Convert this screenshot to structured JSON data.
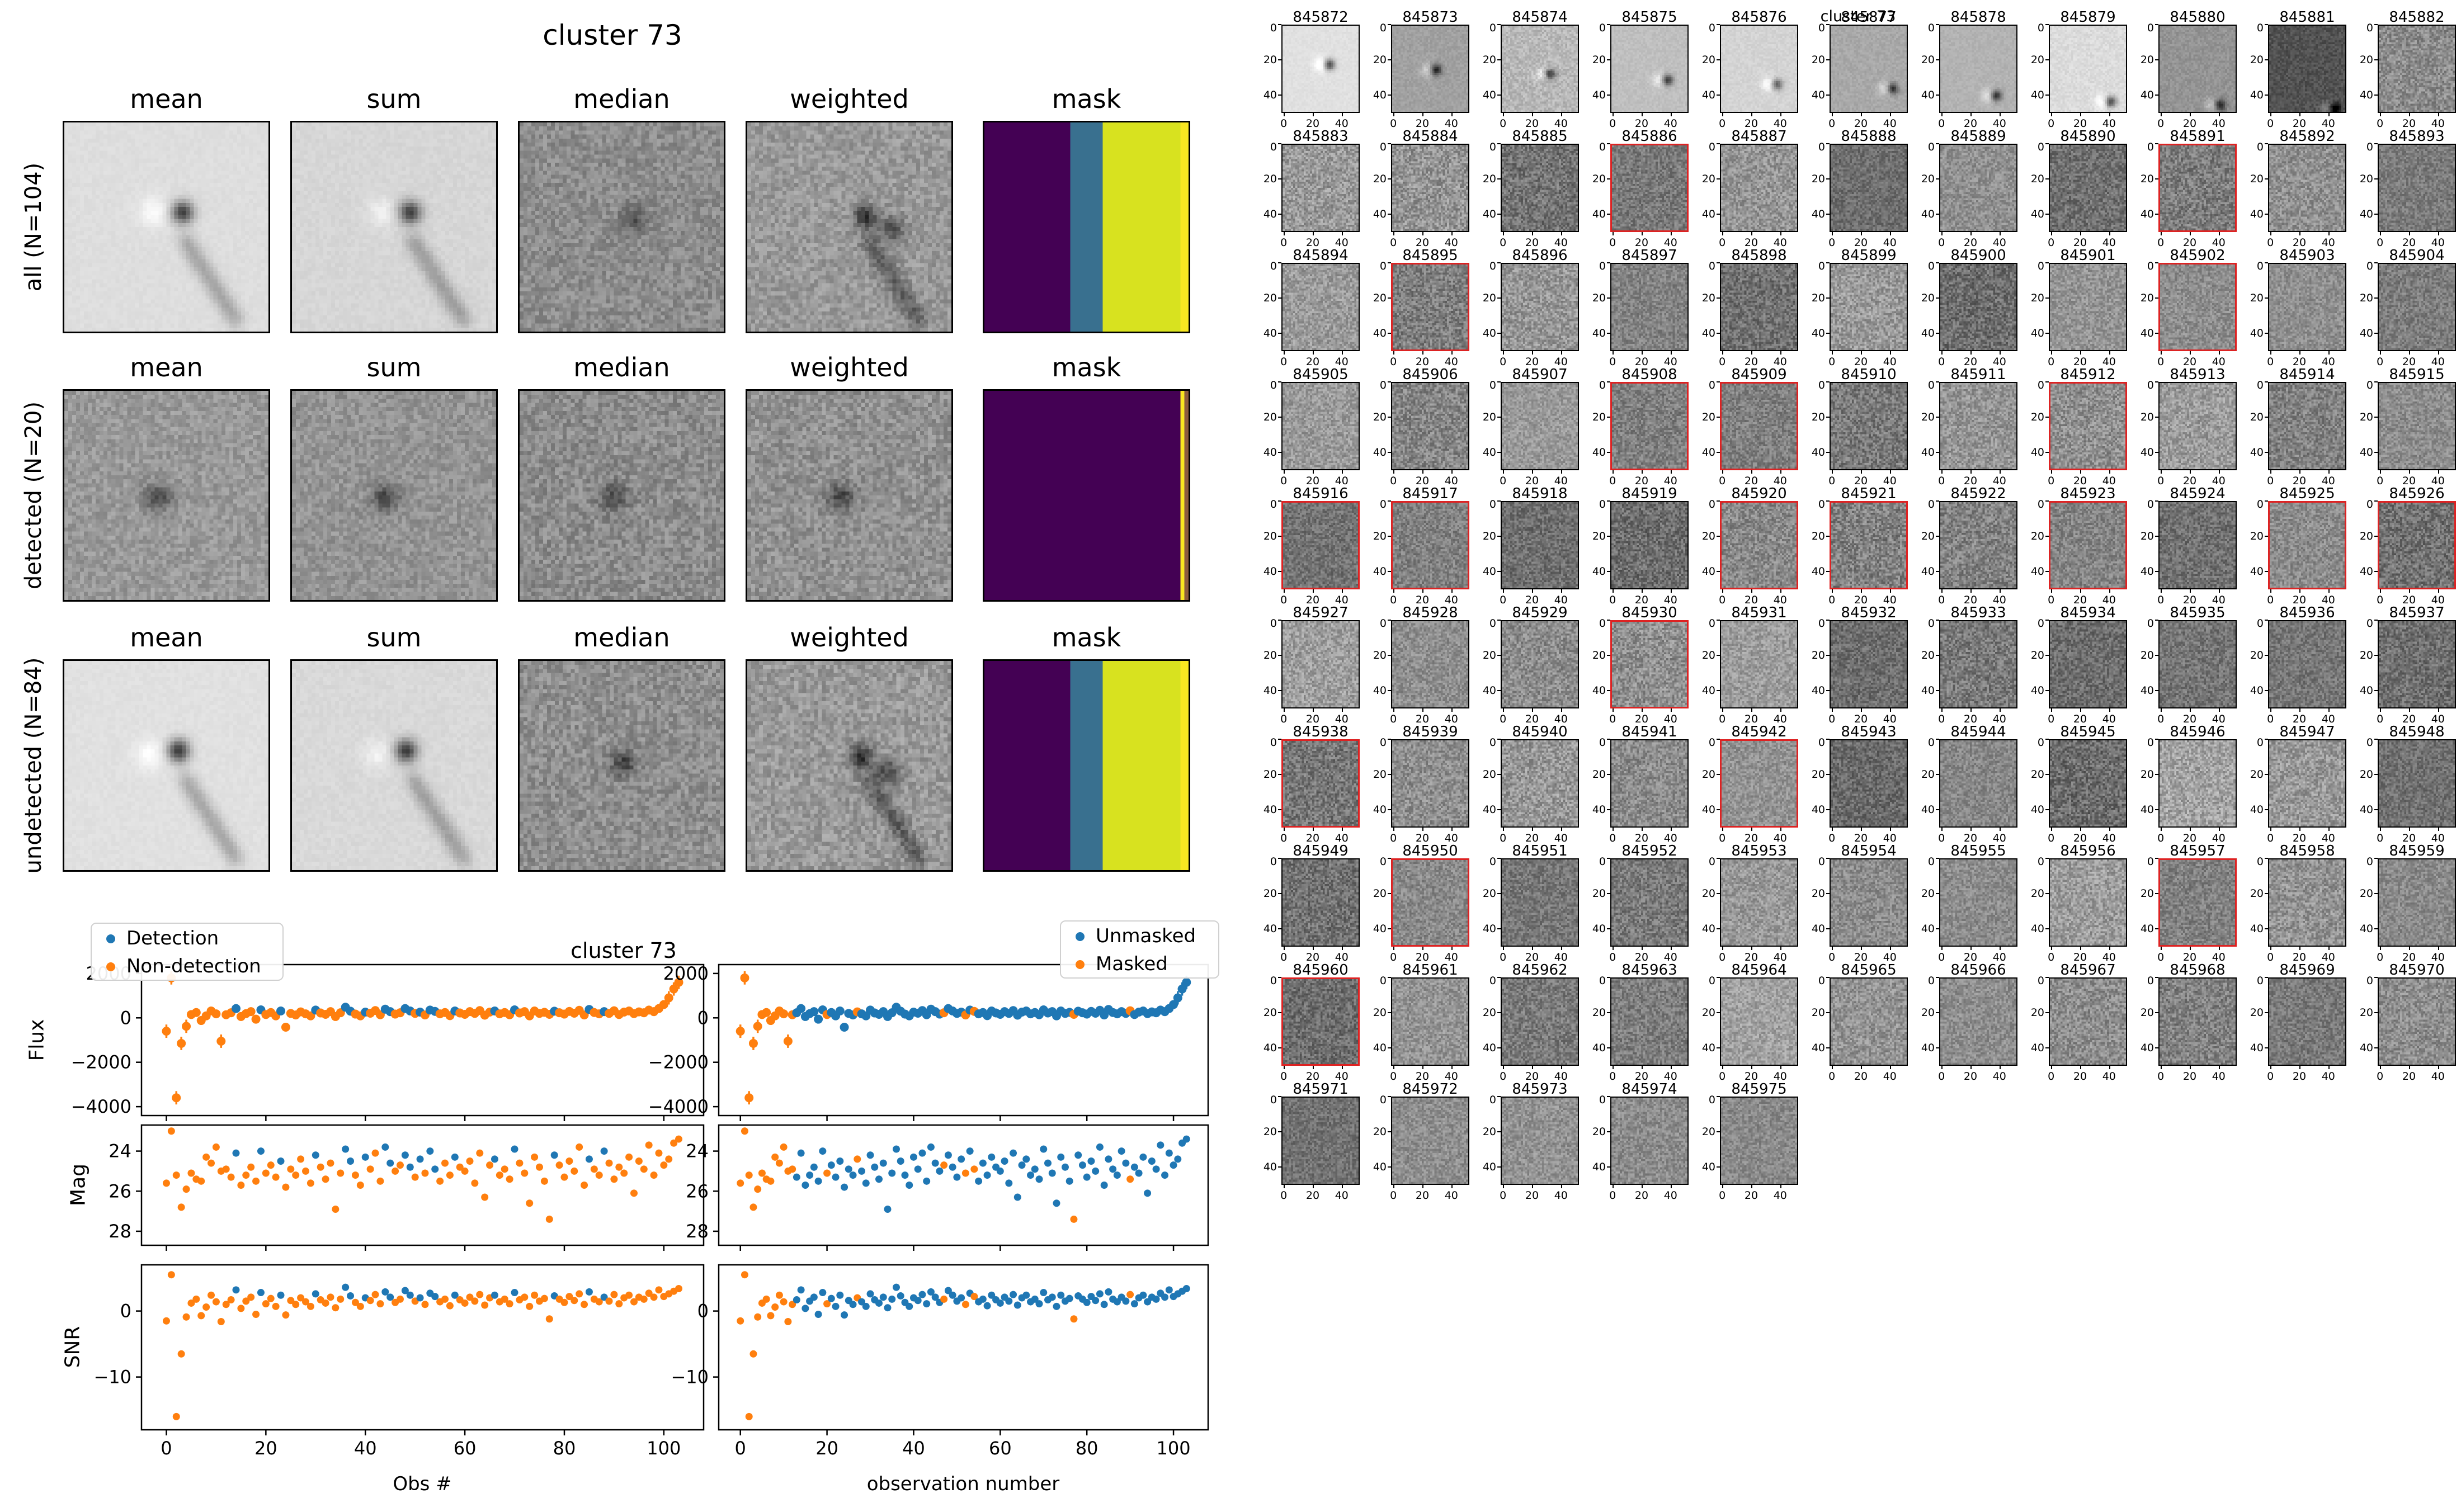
{
  "figure1": {
    "title": "cluster 73",
    "col_headers": [
      "mean",
      "sum",
      "median",
      "weighted",
      "mask"
    ],
    "row_labels": [
      "all (N=104)",
      "detected (N=20)",
      "undetected (N=84)"
    ],
    "mask_colors": {
      "purple": "#440154",
      "blue": "#39708f",
      "yellow": "#d8e21f",
      "bright_yellow": "#f9e721"
    },
    "panels": [
      [
        {
          "t": "img",
          "bg": 0.87,
          "n": 0.015,
          "blobs": [
            [
              0.57,
              0.42,
              -0.62,
              2.0
            ],
            [
              0.43,
              0.42,
              0.12,
              2.6
            ]
          ],
          "streak": true
        },
        {
          "t": "img",
          "bg": 0.84,
          "n": 0.02,
          "blobs": [
            [
              0.57,
              0.42,
              -0.6,
              2.0
            ],
            [
              0.43,
              0.42,
              0.1,
              2.6
            ]
          ],
          "streak": true
        },
        {
          "t": "img",
          "bg": 0.55,
          "n": 0.09,
          "blobs": [
            [
              0.55,
              0.45,
              -0.22,
              2.2
            ]
          ]
        },
        {
          "t": "img",
          "bg": 0.6,
          "n": 0.09,
          "blobs": [
            [
              0.57,
              0.44,
              -0.4,
              2.0
            ],
            [
              0.7,
              0.5,
              -0.28,
              2.2
            ]
          ],
          "streak": true
        },
        {
          "t": "mask",
          "layout": "A"
        }
      ],
      [
        {
          "t": "img",
          "bg": 0.6,
          "n": 0.08,
          "blobs": [
            [
              0.45,
              0.5,
              -0.3,
              2.4
            ]
          ]
        },
        {
          "t": "img",
          "bg": 0.58,
          "n": 0.08,
          "blobs": [
            [
              0.45,
              0.5,
              -0.3,
              2.4
            ]
          ]
        },
        {
          "t": "img",
          "bg": 0.55,
          "n": 0.1,
          "blobs": [
            [
              0.45,
              0.5,
              -0.26,
              2.4
            ]
          ]
        },
        {
          "t": "img",
          "bg": 0.57,
          "n": 0.1,
          "blobs": [
            [
              0.45,
              0.5,
              -0.3,
              2.4
            ]
          ]
        },
        {
          "t": "mask",
          "layout": "B"
        }
      ],
      [
        {
          "t": "img",
          "bg": 0.88,
          "n": 0.015,
          "blobs": [
            [
              0.55,
              0.42,
              -0.65,
              2.0
            ],
            [
              0.41,
              0.44,
              0.12,
              2.6
            ]
          ],
          "streak": true
        },
        {
          "t": "img",
          "bg": 0.85,
          "n": 0.02,
          "blobs": [
            [
              0.55,
              0.42,
              -0.62,
              2.0
            ],
            [
              0.41,
              0.44,
              0.1,
              2.6
            ]
          ],
          "streak": true
        },
        {
          "t": "img",
          "bg": 0.56,
          "n": 0.1,
          "blobs": [
            [
              0.5,
              0.48,
              -0.3,
              2.2
            ]
          ]
        },
        {
          "t": "img",
          "bg": 0.6,
          "n": 0.1,
          "blobs": [
            [
              0.55,
              0.45,
              -0.45,
              2.0
            ],
            [
              0.68,
              0.52,
              -0.3,
              2.2
            ]
          ],
          "streak": true
        },
        {
          "t": "mask",
          "layout": "A"
        }
      ]
    ]
  },
  "figure2": {
    "suptitle": "cluster 73",
    "left_legend": [
      "Detection",
      "Non-detection"
    ],
    "right_legend": [
      "Unmasked",
      "Masked"
    ],
    "ylabels": [
      "Flux",
      "Mag",
      "SNR"
    ],
    "xlabel_left": "Obs #",
    "xlabel_right": "observation number",
    "colors": {
      "blue": "#1f77b4",
      "orange": "#ff7f0e"
    }
  },
  "chart_data": {
    "type": "scatter",
    "title": "cluster 73",
    "n_obs": 104,
    "xlim": [
      -5,
      108
    ],
    "xticks": [
      0,
      20,
      40,
      60,
      80,
      100
    ],
    "xlabel_left": "Obs #",
    "xlabel_right": "observation number",
    "legend_left": [
      "Detection",
      "Non-detection"
    ],
    "legend_right": [
      "Unmasked",
      "Masked"
    ],
    "err_default": 160,
    "err_outlier": 300,
    "detected_idx": [
      14,
      19,
      23,
      30,
      36,
      37,
      40,
      44,
      45,
      48,
      49,
      51,
      53,
      54,
      58,
      66,
      70,
      78,
      85,
      88
    ],
    "masked_idx": [
      0,
      1,
      2,
      3,
      4,
      5,
      6,
      7,
      8,
      9,
      10,
      11,
      12,
      20,
      27,
      47,
      52,
      54,
      77,
      90
    ],
    "panels": [
      {
        "name": "Flux",
        "ylim": [
          2400,
          -4400
        ],
        "yticks": [
          2000,
          0,
          -2000,
          -4000
        ],
        "values": [
          -600,
          1800,
          -3600,
          -1150,
          -380,
          150,
          240,
          -120,
          90,
          310,
          180,
          -1050,
          140,
          230,
          420,
          60,
          190,
          280,
          -60,
          360,
          150,
          240,
          90,
          310,
          -420,
          200,
          130,
          270,
          180,
          90,
          350,
          220,
          160,
          280,
          60,
          230,
          480,
          300,
          170,
          90,
          260,
          210,
          330,
          140,
          390,
          280,
          170,
          230,
          420,
          310,
          200,
          260,
          130,
          350,
          290,
          180,
          240,
          100,
          310,
          220,
          160,
          280,
          200,
          330,
          120,
          260,
          310,
          180,
          240,
          140,
          360,
          220,
          280,
          90,
          310,
          200,
          250,
          160,
          300,
          230,
          170,
          290,
          210,
          340,
          130,
          380,
          240,
          180,
          280,
          200,
          320,
          150,
          260,
          310,
          190,
          270,
          230,
          350,
          280,
          420,
          600,
          900,
          1300,
          1600
        ]
      },
      {
        "name": "Mag",
        "ylim": [
          22.7,
          28.7
        ],
        "yticks": [
          24,
          26,
          28
        ],
        "values": [
          25.6,
          23.0,
          25.2,
          26.8,
          25.9,
          25.1,
          25.4,
          25.5,
          24.3,
          24.6,
          23.8,
          25.0,
          24.9,
          25.3,
          24.1,
          25.7,
          25.2,
          24.8,
          25.5,
          24.0,
          25.1,
          24.7,
          25.3,
          24.5,
          25.8,
          24.9,
          25.2,
          24.4,
          25.0,
          25.6,
          24.2,
          24.8,
          25.4,
          24.6,
          26.9,
          25.1,
          23.9,
          24.5,
          25.2,
          25.7,
          24.3,
          24.9,
          24.1,
          25.5,
          23.8,
          24.6,
          25.0,
          24.7,
          24.2,
          24.8,
          25.3,
          24.4,
          25.1,
          24.0,
          24.9,
          25.5,
          24.6,
          25.2,
          24.3,
          24.8,
          25.0,
          24.5,
          25.6,
          24.1,
          26.3,
          24.7,
          24.4,
          25.2,
          24.9,
          25.4,
          23.9,
          24.6,
          25.1,
          26.6,
          24.3,
          24.8,
          25.5,
          27.4,
          24.2,
          24.7,
          25.3,
          24.5,
          25.0,
          23.8,
          25.7,
          24.4,
          24.9,
          25.2,
          24.0,
          24.6,
          25.4,
          24.8,
          25.1,
          24.3,
          26.1,
          24.5,
          24.9,
          23.7,
          25.2,
          24.1,
          24.7,
          24.4,
          23.6,
          23.4
        ]
      },
      {
        "name": "SNR",
        "ylim": [
          7,
          -18
        ],
        "yticks": [
          0,
          -10
        ],
        "values": [
          -1.5,
          5.5,
          -16.0,
          -6.5,
          -0.9,
          1.2,
          1.8,
          -0.7,
          0.6,
          2.4,
          1.4,
          -1.6,
          1.0,
          1.7,
          3.2,
          0.4,
          1.5,
          2.1,
          -0.5,
          2.8,
          1.1,
          1.9,
          0.7,
          2.4,
          -0.6,
          1.6,
          1.0,
          2.0,
          1.4,
          0.7,
          2.6,
          1.7,
          1.2,
          2.1,
          0.5,
          1.8,
          3.6,
          2.3,
          1.3,
          0.7,
          2.0,
          1.6,
          2.5,
          1.1,
          2.9,
          2.1,
          1.3,
          1.8,
          3.1,
          2.4,
          1.5,
          2.0,
          1.0,
          2.7,
          2.2,
          1.4,
          1.8,
          0.8,
          2.4,
          1.7,
          1.2,
          2.1,
          1.5,
          2.5,
          0.9,
          2.0,
          2.4,
          1.4,
          1.8,
          1.1,
          2.8,
          1.7,
          2.1,
          0.7,
          2.4,
          1.5,
          1.9,
          -1.2,
          2.3,
          1.8,
          1.3,
          2.2,
          1.6,
          2.6,
          1.0,
          2.9,
          1.8,
          1.4,
          2.1,
          1.5,
          2.5,
          1.1,
          2.0,
          2.4,
          1.4,
          2.1,
          1.8,
          2.7,
          2.1,
          3.2,
          2.2,
          2.6,
          3.0,
          3.4
        ]
      }
    ]
  },
  "figure3": {
    "suptitle": "cluster 73",
    "xticks": [
      0,
      20,
      40
    ],
    "yticks": [
      0,
      20,
      40
    ],
    "red_border_color": "#dd2222",
    "ids": [
      845872,
      845873,
      845874,
      845875,
      845876,
      845877,
      845878,
      845879,
      845880,
      845881,
      845882,
      845883,
      845884,
      845885,
      845886,
      845887,
      845888,
      845889,
      845890,
      845891,
      845892,
      845893,
      845894,
      845895,
      845896,
      845897,
      845898,
      845899,
      845900,
      845901,
      845902,
      845903,
      845904,
      845905,
      845906,
      845907,
      845908,
      845909,
      845910,
      845911,
      845912,
      845913,
      845914,
      845915,
      845916,
      845917,
      845918,
      845919,
      845920,
      845921,
      845922,
      845923,
      845924,
      845925,
      845926,
      845927,
      845928,
      845929,
      845930,
      845931,
      845932,
      845933,
      845934,
      845935,
      845936,
      845937,
      845938,
      845939,
      845940,
      845941,
      845942,
      845943,
      845944,
      845945,
      845946,
      845947,
      845948,
      845949,
      845950,
      845951,
      845952,
      845953,
      845954,
      845955,
      845956,
      845957,
      845958,
      845959,
      845960,
      845961,
      845962,
      845963,
      845964,
      845965,
      845966,
      845967,
      845968,
      845969,
      845970,
      845971,
      845972,
      845973,
      845974,
      845975
    ],
    "red_ids": [
      845886,
      845891,
      845895,
      845902,
      845908,
      845909,
      845912,
      845916,
      845917,
      845920,
      845921,
      845923,
      845925,
      845926,
      845930,
      845938,
      845942,
      845950,
      845957,
      845960
    ],
    "psf_cells": [
      [
        0.6,
        0.44,
        0.88,
        0.02,
        -0.62
      ],
      [
        0.56,
        0.5,
        0.63,
        0.04,
        -0.55
      ],
      [
        0.62,
        0.55,
        0.72,
        0.08,
        -0.5
      ],
      [
        0.72,
        0.62,
        0.75,
        0.03,
        -0.55
      ],
      [
        0.72,
        0.67,
        0.83,
        0.03,
        -0.5
      ],
      [
        0.8,
        0.72,
        0.66,
        0.04,
        -0.5
      ],
      [
        0.72,
        0.8,
        0.7,
        0.03,
        -0.55
      ],
      [
        0.78,
        0.87,
        0.86,
        0.04,
        -0.6
      ],
      [
        0.78,
        0.91,
        0.58,
        0.05,
        -0.5
      ],
      [
        0.85,
        0.95,
        0.32,
        0.07,
        -0.45
      ],
      [
        0.6,
        0.6,
        0.55,
        0.13,
        0
      ]
    ],
    "shade_overrides": {
      "845885": 0.45,
      "845924": 0.44,
      "845927": 0.62,
      "845943": 0.42,
      "845946": 0.64,
      "845960": 0.43,
      "845964": 0.63
    }
  }
}
